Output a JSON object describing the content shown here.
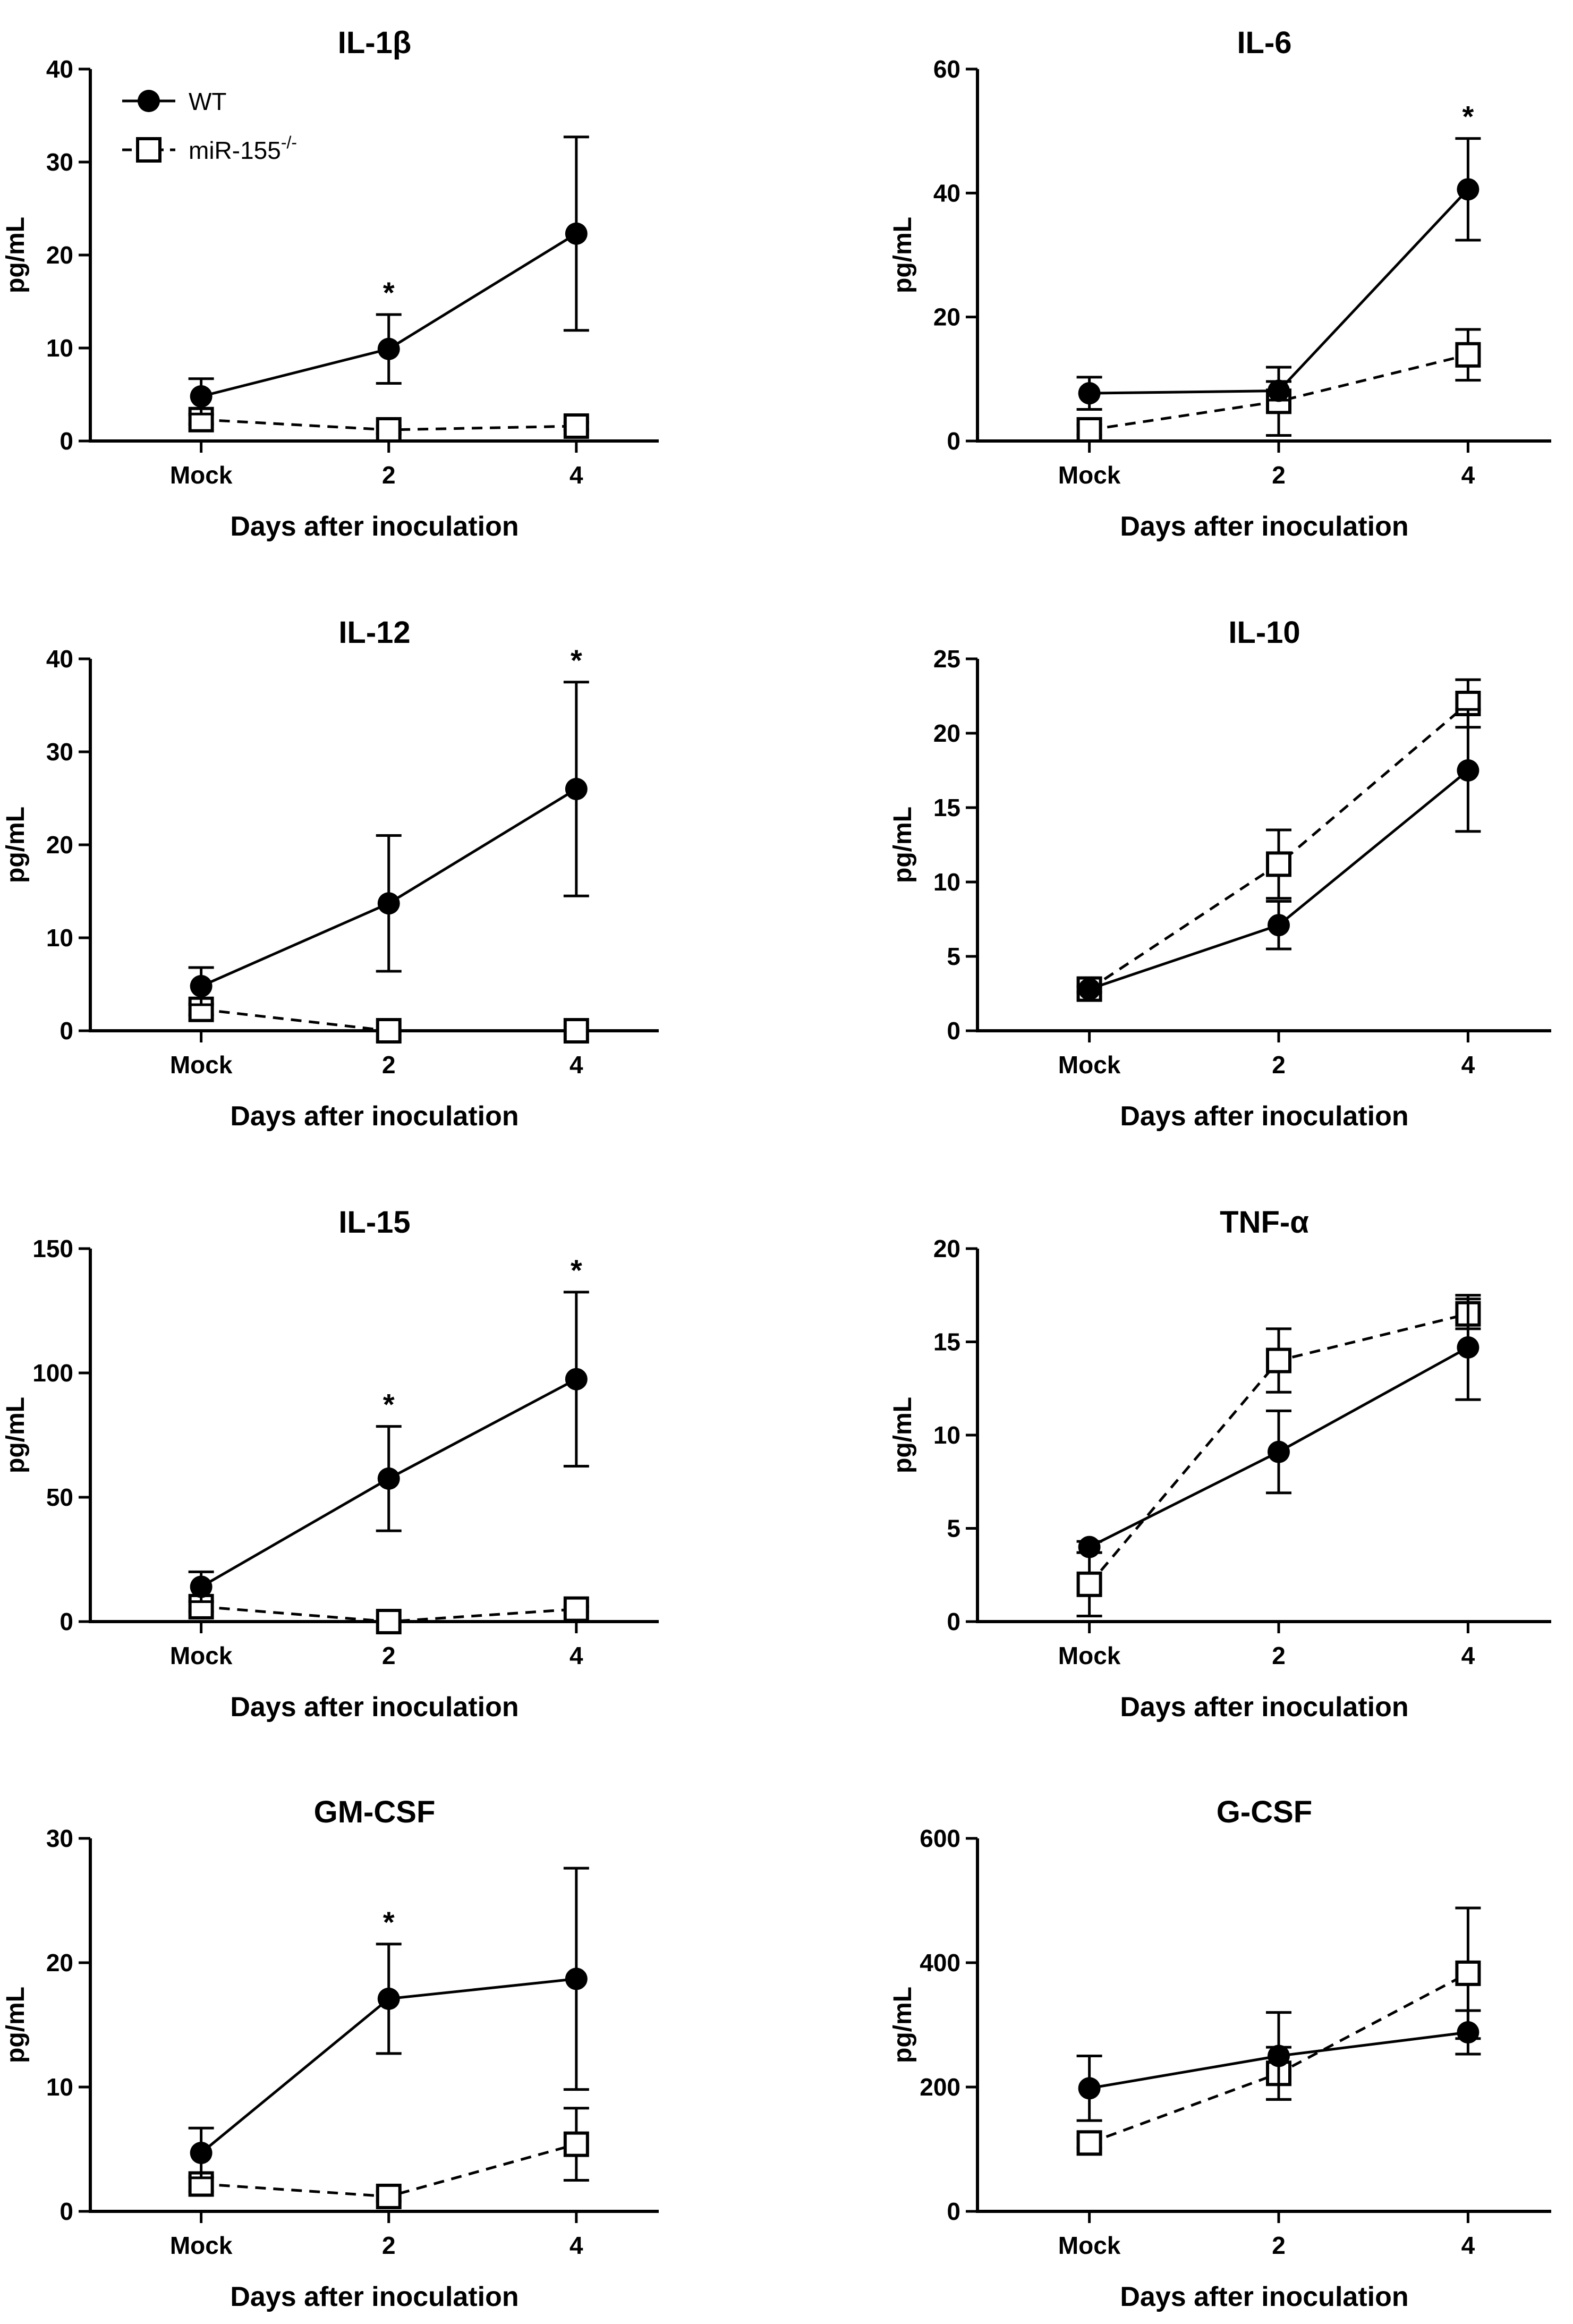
{
  "legend": {
    "wt_label": "WT",
    "ko_label": "miR-155",
    "ko_superscript": "-/-"
  },
  "colors": {
    "ink": "#000000",
    "open_fill": "#ffffff"
  },
  "chart_data": [
    {
      "type": "line",
      "title": "IL-1β",
      "xlabel": "Days after inoculation",
      "ylabel": "pg/mL",
      "categories": [
        "Mock",
        "2",
        "4"
      ],
      "ylim": [
        0,
        40
      ],
      "yticks": [
        0,
        10,
        20,
        30,
        40
      ],
      "series": [
        {
          "name": "WT",
          "values": [
            4.8,
            9.9,
            22.3
          ],
          "errors": [
            1.9,
            3.7,
            10.4
          ]
        },
        {
          "name": "miR-155-/-",
          "values": [
            2.3,
            1.2,
            1.6
          ],
          "errors": [
            0.5,
            0.4,
            0.4
          ]
        }
      ],
      "significance": [
        {
          "index": 1,
          "label": "*"
        }
      ]
    },
    {
      "type": "line",
      "title": "IL-6",
      "xlabel": "Days after inoculation",
      "ylabel": "pg/mL",
      "categories": [
        "Mock",
        "2",
        "4"
      ],
      "ylim": [
        0,
        60
      ],
      "yticks": [
        0,
        20,
        40,
        60
      ],
      "series": [
        {
          "name": "WT",
          "values": [
            7.7,
            8.1,
            40.6
          ],
          "errors": [
            2.6,
            1.5,
            8.2
          ]
        },
        {
          "name": "miR-155-/-",
          "values": [
            1.8,
            6.4,
            13.9
          ],
          "errors": [
            0.8,
            5.5,
            4.1
          ]
        }
      ],
      "significance": [
        {
          "index": 2,
          "label": "*"
        }
      ]
    },
    {
      "type": "line",
      "title": "IL-12",
      "xlabel": "Days after inoculation",
      "ylabel": "pg/mL",
      "categories": [
        "Mock",
        "2",
        "4"
      ],
      "ylim": [
        0,
        40
      ],
      "yticks": [
        0,
        10,
        20,
        30,
        40
      ],
      "series": [
        {
          "name": "WT",
          "values": [
            4.8,
            13.7,
            26.0
          ],
          "errors": [
            2.0,
            7.3,
            11.5
          ]
        },
        {
          "name": "miR-155-/-",
          "values": [
            2.3,
            0.0,
            0.0
          ],
          "errors": [
            0.6,
            0.0,
            0.0
          ]
        }
      ],
      "significance": [
        {
          "index": 2,
          "label": "*"
        }
      ]
    },
    {
      "type": "line",
      "title": "IL-10",
      "xlabel": "Days after inoculation",
      "ylabel": "pg/mL",
      "categories": [
        "Mock",
        "2",
        "4"
      ],
      "ylim": [
        0,
        25
      ],
      "yticks": [
        0,
        5,
        10,
        15,
        20,
        25
      ],
      "series": [
        {
          "name": "WT",
          "values": [
            2.8,
            7.1,
            17.5
          ],
          "errors": [
            0.2,
            1.6,
            4.1
          ]
        },
        {
          "name": "miR-155-/-",
          "values": [
            2.8,
            11.2,
            22.0
          ],
          "errors": [
            0.2,
            2.3,
            1.6
          ]
        }
      ],
      "significance": []
    },
    {
      "type": "line",
      "title": "IL-15",
      "xlabel": "Days after inoculation",
      "ylabel": "pg/mL",
      "categories": [
        "Mock",
        "2",
        "4"
      ],
      "ylim": [
        0,
        150
      ],
      "yticks": [
        0,
        50,
        100,
        150
      ],
      "series": [
        {
          "name": "WT",
          "values": [
            14.0,
            57.5,
            97.5
          ],
          "errors": [
            6.0,
            21.0,
            35.0
          ]
        },
        {
          "name": "miR-155-/-",
          "values": [
            6.0,
            0.0,
            5.0
          ],
          "errors": [
            2.0,
            0.0,
            1.0
          ]
        }
      ],
      "significance": [
        {
          "index": 1,
          "label": "*"
        },
        {
          "index": 2,
          "label": "*"
        }
      ]
    },
    {
      "type": "line",
      "title": "TNF-α",
      "xlabel": "Days after inoculation",
      "ylabel": "pg/mL",
      "categories": [
        "Mock",
        "2",
        "4"
      ],
      "ylim": [
        0,
        20
      ],
      "yticks": [
        0,
        5,
        10,
        15,
        20
      ],
      "series": [
        {
          "name": "WT",
          "values": [
            4.0,
            9.1,
            14.7
          ],
          "errors": [
            0.3,
            2.2,
            2.8
          ]
        },
        {
          "name": "miR-155-/-",
          "values": [
            2.0,
            14.0,
            16.5
          ],
          "errors": [
            1.7,
            1.7,
            0.8
          ]
        }
      ],
      "significance": []
    },
    {
      "type": "line",
      "title": "GM-CSF",
      "xlabel": "Days after inoculation",
      "ylabel": "pg/mL",
      "categories": [
        "Mock",
        "2",
        "4"
      ],
      "ylim": [
        0,
        30
      ],
      "yticks": [
        0,
        10,
        20,
        30
      ],
      "series": [
        {
          "name": "WT",
          "values": [
            4.7,
            17.1,
            18.7
          ],
          "errors": [
            2.0,
            4.4,
            8.9
          ]
        },
        {
          "name": "miR-155-/-",
          "values": [
            2.2,
            1.2,
            5.4
          ],
          "errors": [
            0.6,
            0.4,
            2.9
          ]
        }
      ],
      "significance": [
        {
          "index": 1,
          "label": "*"
        }
      ]
    },
    {
      "type": "line",
      "title": "G-CSF",
      "xlabel": "Days after inoculation",
      "ylabel": "pg/mL",
      "categories": [
        "Mock",
        "2",
        "4"
      ],
      "ylim": [
        0,
        600
      ],
      "yticks": [
        0,
        200,
        400,
        600
      ],
      "series": [
        {
          "name": "WT",
          "values": [
            198,
            250,
            288
          ],
          "errors": [
            52,
            70,
            35
          ]
        },
        {
          "name": "miR-155-/-",
          "values": [
            110,
            222,
            383
          ],
          "errors": [
            8,
            42,
            105
          ]
        }
      ],
      "significance": []
    }
  ]
}
